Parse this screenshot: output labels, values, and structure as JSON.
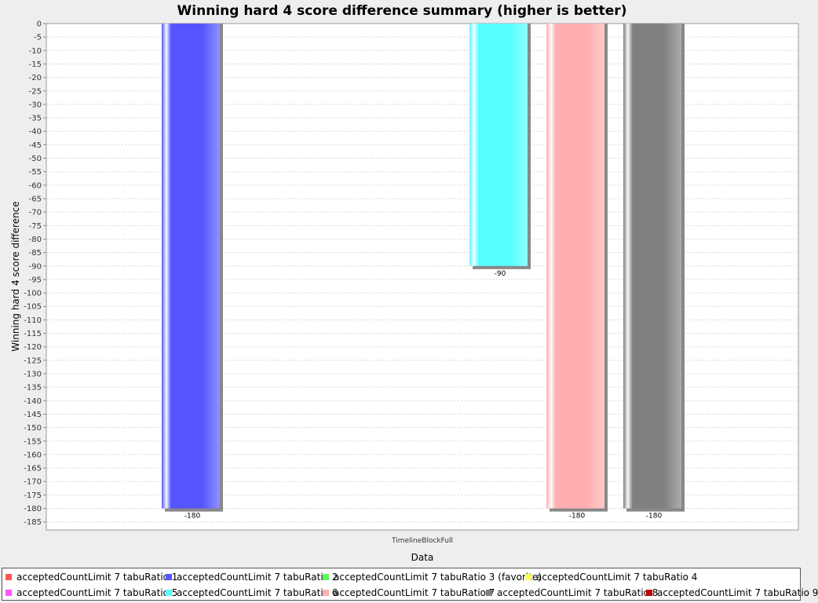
{
  "chart_data": {
    "type": "bar",
    "title": "Winning hard 4 score difference summary (higher is better)",
    "xlabel": "Data",
    "ylabel": "Winning hard 4 score difference",
    "categories": [
      "TimelineBlockFull"
    ],
    "ylim": [
      -188,
      0
    ],
    "ytick_step": 5,
    "grid": true,
    "legend_position": "bottom",
    "series": [
      {
        "name": "acceptedCountLimit 7 tabuRatio 1",
        "color": "#ff5555",
        "values": [
          0
        ],
        "label": ""
      },
      {
        "name": "acceptedCountLimit 7 tabuRatio 2",
        "color": "#5555ff",
        "values": [
          -180
        ],
        "label": "-180"
      },
      {
        "name": "acceptedCountLimit 7 tabuRatio 3 (favorite)",
        "color": "#55ff55",
        "values": [
          0
        ],
        "label": ""
      },
      {
        "name": "acceptedCountLimit 7 tabuRatio 4",
        "color": "#ffff55",
        "values": [
          0
        ],
        "label": ""
      },
      {
        "name": "acceptedCountLimit 7 tabuRatio 5",
        "color": "#ff55ff",
        "values": [
          0
        ],
        "label": ""
      },
      {
        "name": "acceptedCountLimit 7 tabuRatio 6",
        "color": "#55ffff",
        "values": [
          -90
        ],
        "label": "-90"
      },
      {
        "name": "acceptedCountLimit 7 tabuRatio 7",
        "color": "#ffafaf",
        "values": [
          -180
        ],
        "label": "-180"
      },
      {
        "name": "acceptedCountLimit 7 tabuRatio 8",
        "color": "#808080",
        "values": [
          -180
        ],
        "label": "-180"
      },
      {
        "name": "acceptedCountLimit 7 tabuRatio 9",
        "color": "#c00000",
        "values": [
          0
        ],
        "label": ""
      }
    ]
  }
}
